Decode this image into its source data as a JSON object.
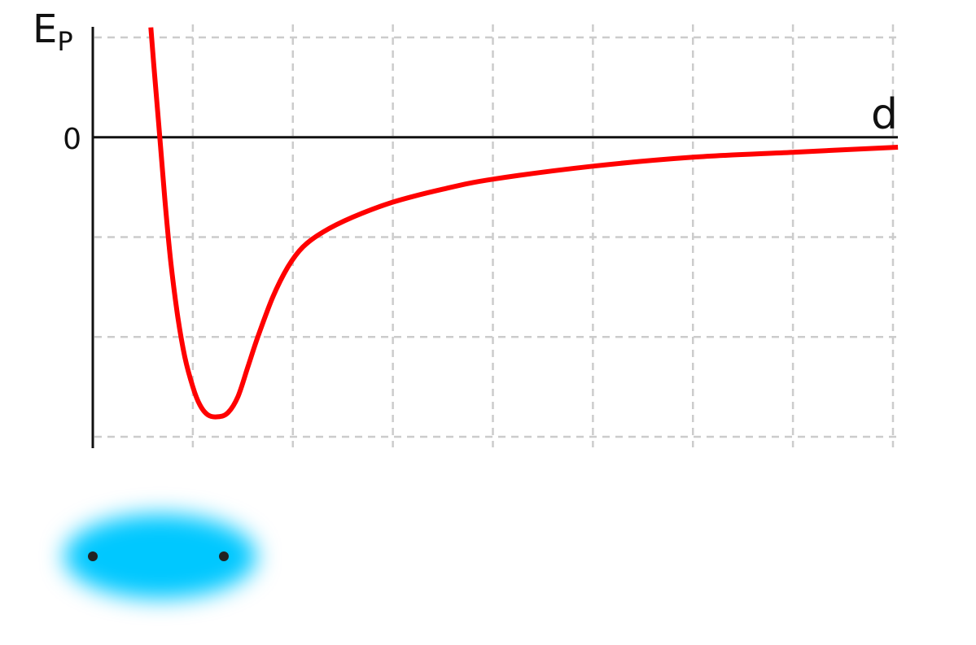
{
  "chart_data": {
    "type": "line",
    "title": "",
    "ylabel": "E",
    "ylabel_subscript": "P",
    "xlabel": "d",
    "y_tick_labels": [
      "0"
    ],
    "xlim": [
      0,
      8
    ],
    "ylim": [
      -3,
      1
    ],
    "grid": true,
    "grid_style": "dashed",
    "series": [
      {
        "color": "#ff0000",
        "points": [
          [
            0.58,
            1.1
          ],
          [
            0.62,
            0.6
          ],
          [
            0.67,
            0.0
          ],
          [
            0.72,
            -0.62
          ],
          [
            0.78,
            -1.25
          ],
          [
            0.85,
            -1.8
          ],
          [
            0.92,
            -2.2
          ],
          [
            1.0,
            -2.5
          ],
          [
            1.07,
            -2.68
          ],
          [
            1.15,
            -2.78
          ],
          [
            1.25,
            -2.8
          ],
          [
            1.35,
            -2.76
          ],
          [
            1.45,
            -2.6
          ],
          [
            1.55,
            -2.3
          ],
          [
            1.65,
            -2.0
          ],
          [
            1.8,
            -1.6
          ],
          [
            1.95,
            -1.3
          ],
          [
            2.1,
            -1.1
          ],
          [
            2.3,
            -0.95
          ],
          [
            2.6,
            -0.8
          ],
          [
            3.0,
            -0.65
          ],
          [
            3.5,
            -0.52
          ],
          [
            4.0,
            -0.42
          ],
          [
            5.0,
            -0.29
          ],
          [
            6.0,
            -0.2
          ],
          [
            7.0,
            -0.15
          ],
          [
            8.05,
            -0.1
          ]
        ]
      }
    ],
    "illustration": {
      "type": "diatomic-molecule",
      "cloud_color": "#00c8ff",
      "nucleus_color": "#222222"
    }
  }
}
